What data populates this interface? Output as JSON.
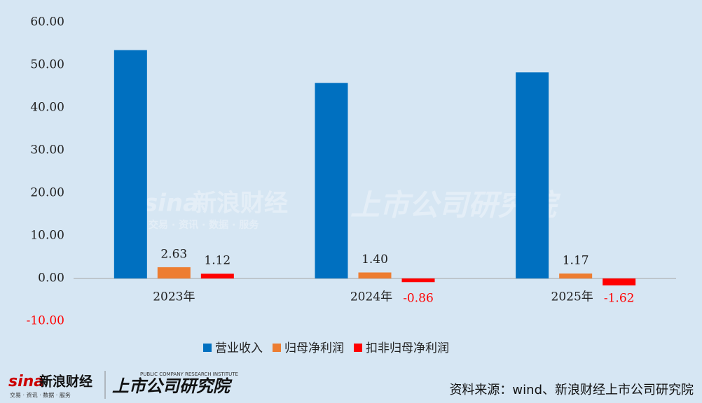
{
  "chart_data": {
    "type": "bar",
    "categories": [
      "2023年",
      "2024年",
      "2025年"
    ],
    "series": [
      {
        "name": "营业收入",
        "color": "#0070c0",
        "values": [
          53.5,
          45.8,
          48.3
        ]
      },
      {
        "name": "归母净利润",
        "color": "#ed7d31",
        "values": [
          2.63,
          1.4,
          1.17
        ],
        "value_labels": [
          "2.63",
          "1.40",
          "1.17"
        ]
      },
      {
        "name": "扣非归母净利润",
        "color": "#ff0000",
        "values": [
          1.12,
          -0.86,
          -1.62
        ],
        "value_labels": [
          "1.12",
          "-0.86",
          "-1.62"
        ]
      }
    ],
    "ylim": [
      -10,
      60
    ],
    "yticks": [
      {
        "value": -10,
        "label": "-10.00"
      },
      {
        "value": 0,
        "label": "0.00"
      },
      {
        "value": 10,
        "label": "10.00"
      },
      {
        "value": 20,
        "label": "20.00"
      },
      {
        "value": 30,
        "label": "30.00"
      },
      {
        "value": 40,
        "label": "40.00"
      },
      {
        "value": 50,
        "label": "50.00"
      },
      {
        "value": 60,
        "label": "60.00"
      }
    ],
    "grid": false,
    "legend": "bottom"
  },
  "footer": {
    "sina": "sina",
    "logo_text": "新浪财经",
    "logo_sub": "交易 · 资讯 · 数据 · 服务",
    "institute": "上市公司研究院",
    "institute_en": "PUBLIC COMPANY RESEARCH INSTITUTE",
    "source": "资料来源：wind、新浪财经上市公司研究院"
  }
}
